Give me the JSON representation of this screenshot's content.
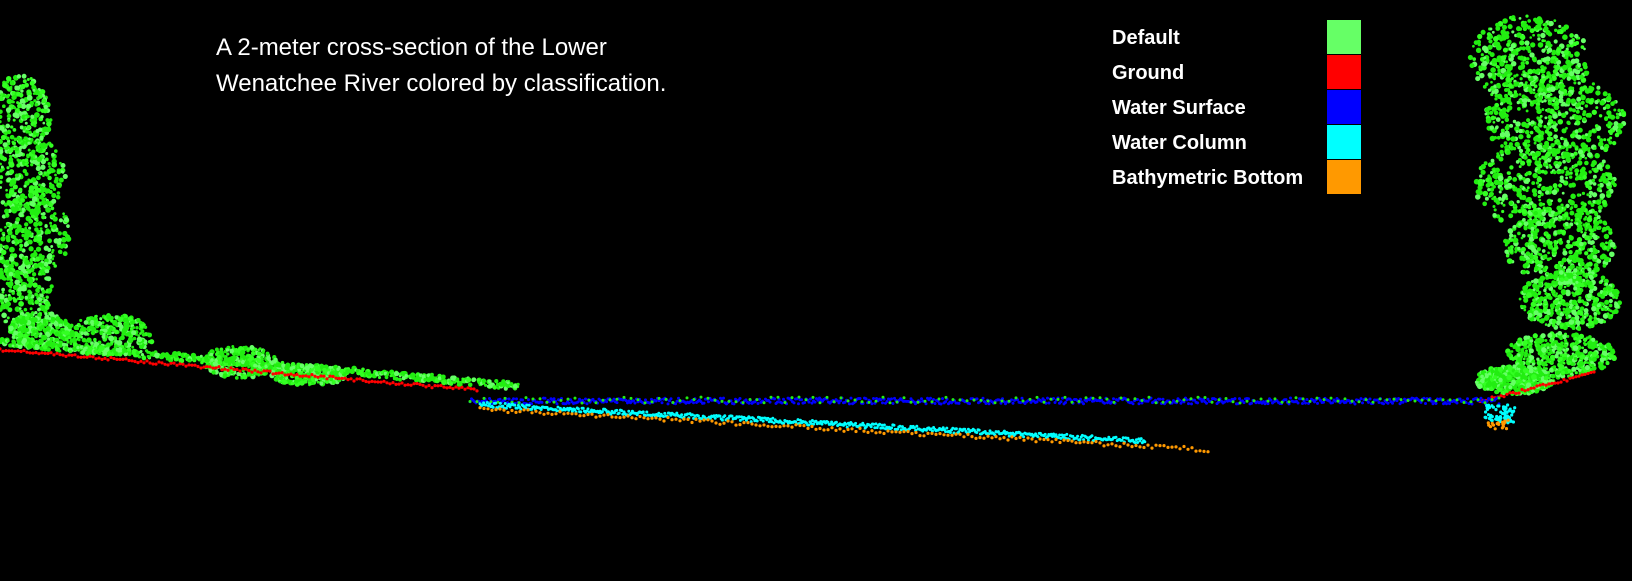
{
  "caption": {
    "line1": "A 2-meter cross-section of the Lower",
    "line2": "Wenatchee River colored by classification."
  },
  "legend": {
    "items": [
      {
        "label": "Default",
        "color": "#66ff66"
      },
      {
        "label": "Ground",
        "color": "#ff0000"
      },
      {
        "label": "Water Surface",
        "color": "#0000ff"
      },
      {
        "label": "Water Column",
        "color": "#00ffff"
      },
      {
        "label": "Bathymetric  Bottom",
        "color": "#ff9900"
      }
    ]
  },
  "palette": {
    "background": "#000000",
    "vegetation": "#22ee11"
  }
}
